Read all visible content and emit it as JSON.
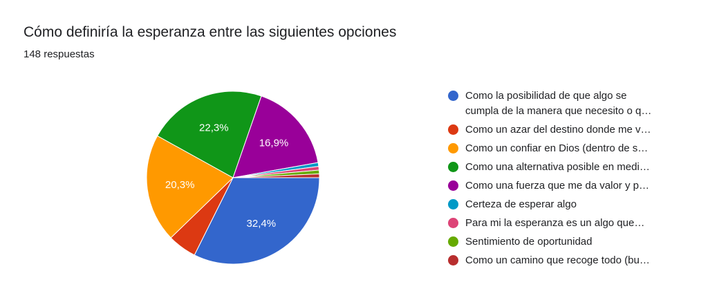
{
  "header": {
    "title": "Cómo definiría la esperanza entre las siguientes opciones",
    "response_count": "148 respuestas"
  },
  "chart_data": {
    "type": "pie",
    "title": "Cómo definiría la esperanza entre las siguientes opciones",
    "subtitle": "148 respuestas",
    "legend_position": "right",
    "slices": [
      {
        "label": "Como la posibilidad de que algo se cumpla de la manera que necesito o q…",
        "label_lines": [
          "Como la posibilidad de que algo se",
          "cumpla de la manera que necesito o q…"
        ],
        "value": 32.4,
        "display": "32,4%",
        "color": "#3366cc"
      },
      {
        "label": "Como un azar del destino donde me v…",
        "value": 5.4,
        "display": "",
        "color": "#dc3912"
      },
      {
        "label": "Como un confiar en Dios (dentro de s…",
        "value": 20.3,
        "display": "20,3%",
        "color": "#ff9900"
      },
      {
        "label": "Como una alternativa posible en medi…",
        "value": 22.3,
        "display": "22,3%",
        "color": "#109618"
      },
      {
        "label": "Como una fuerza que me da valor y p…",
        "value": 16.9,
        "display": "16,9%",
        "color": "#990099"
      },
      {
        "label": "Certeza de esperar algo",
        "value": 0.7,
        "display": "",
        "color": "#0099c6"
      },
      {
        "label": "Para mi la esperanza es un algo que…",
        "value": 0.7,
        "display": "",
        "color": "#dd4477"
      },
      {
        "label": "Sentimiento de oportunidad",
        "value": 0.7,
        "display": "",
        "color": "#66aa00"
      },
      {
        "label": "Como un camino que recoge todo (bu…",
        "value": 0.7,
        "display": "",
        "color": "#b82e2e"
      }
    ]
  }
}
